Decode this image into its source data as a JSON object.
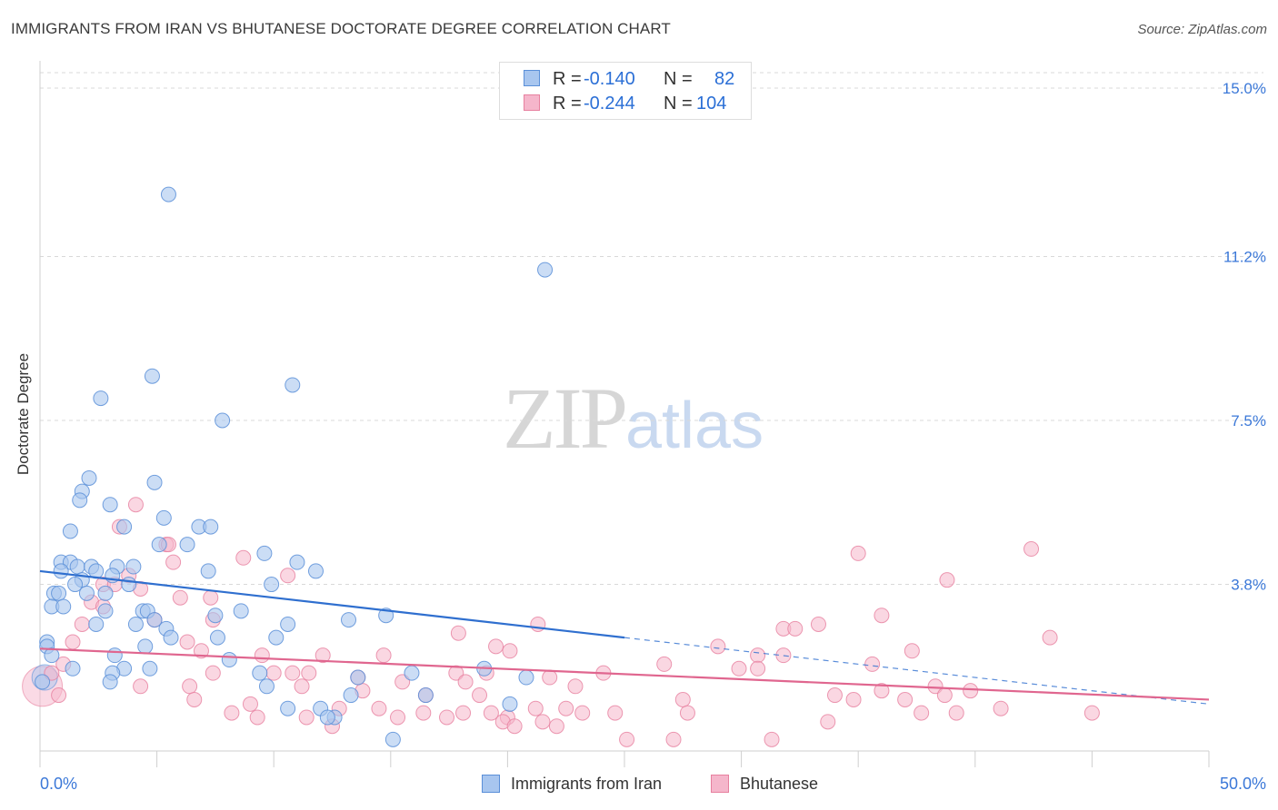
{
  "header": {
    "title": "IMMIGRANTS FROM IRAN VS BHUTANESE DOCTORATE DEGREE CORRELATION CHART",
    "source": "Source: ZipAtlas.com"
  },
  "watermark": {
    "part1": "ZIP",
    "part2": "atlas"
  },
  "legend": {
    "rows": [
      {
        "r_label": "R =",
        "r_value": "-0.140",
        "n_label": "N =",
        "n_value": "82"
      },
      {
        "r_label": "R =",
        "r_value": "-0.244",
        "n_label": "N =",
        "n_value": "104"
      }
    ]
  },
  "bottom_legend": {
    "series1": "Immigrants from Iran",
    "series2": "Bhutanese"
  },
  "chart_data": {
    "type": "scatter",
    "title": "IMMIGRANTS FROM IRAN VS BHUTANESE DOCTORATE DEGREE CORRELATION CHART",
    "xlabel": "",
    "ylabel": "Doctorate Degree",
    "xlim": [
      0,
      50
    ],
    "ylim": [
      0,
      15
    ],
    "x_tick_labels": [
      "0.0%",
      "50.0%"
    ],
    "y_ticks": [
      {
        "value": 15.0,
        "label": "15.0%"
      },
      {
        "value": 11.2,
        "label": "11.2%"
      },
      {
        "value": 7.5,
        "label": "7.5%"
      },
      {
        "value": 3.8,
        "label": "3.8%"
      }
    ],
    "colors": {
      "series1_fill": "#a8c6ef",
      "series1_stroke": "#5a8fd8",
      "series1_line": "#2f6fcf",
      "series2_fill": "#f5b6cb",
      "series2_stroke": "#e7809f",
      "series2_line": "#e0668f",
      "grid": "#d9d9d9",
      "tick_label": "#3b78d8"
    },
    "series": [
      {
        "name": "Immigrants from Iran",
        "R": -0.14,
        "N": 82,
        "trend": {
          "x0": 0,
          "y0": 4.1,
          "x1": 25,
          "y1": 2.6,
          "dash_to_x": 50,
          "dash_to_y": 1.1
        },
        "points": [
          [
            5.5,
            12.6
          ],
          [
            21.6,
            10.9
          ],
          [
            4.8,
            8.5
          ],
          [
            10.8,
            8.3
          ],
          [
            2.6,
            8.0
          ],
          [
            7.8,
            7.5
          ],
          [
            2.1,
            6.2
          ],
          [
            4.9,
            6.1
          ],
          [
            1.8,
            5.9
          ],
          [
            1.7,
            5.7
          ],
          [
            3.0,
            5.6
          ],
          [
            5.3,
            5.3
          ],
          [
            1.3,
            5.0
          ],
          [
            3.6,
            5.1
          ],
          [
            6.8,
            5.1
          ],
          [
            7.3,
            5.1
          ],
          [
            5.1,
            4.7
          ],
          [
            6.3,
            4.7
          ],
          [
            9.6,
            4.5
          ],
          [
            0.9,
            4.3
          ],
          [
            1.3,
            4.3
          ],
          [
            1.6,
            4.2
          ],
          [
            2.2,
            4.2
          ],
          [
            3.3,
            4.2
          ],
          [
            4.0,
            4.2
          ],
          [
            0.9,
            4.1
          ],
          [
            2.4,
            4.1
          ],
          [
            7.2,
            4.1
          ],
          [
            11.0,
            4.3
          ],
          [
            11.8,
            4.1
          ],
          [
            3.1,
            4.0
          ],
          [
            1.8,
            3.9
          ],
          [
            1.5,
            3.8
          ],
          [
            3.8,
            3.8
          ],
          [
            9.9,
            3.8
          ],
          [
            0.6,
            3.6
          ],
          [
            0.8,
            3.6
          ],
          [
            2.0,
            3.6
          ],
          [
            2.8,
            3.6
          ],
          [
            0.5,
            3.3
          ],
          [
            1.0,
            3.3
          ],
          [
            2.8,
            3.2
          ],
          [
            4.4,
            3.2
          ],
          [
            4.6,
            3.2
          ],
          [
            7.5,
            3.1
          ],
          [
            8.6,
            3.2
          ],
          [
            4.9,
            3.0
          ],
          [
            13.2,
            3.0
          ],
          [
            14.8,
            3.1
          ],
          [
            2.4,
            2.9
          ],
          [
            4.1,
            2.9
          ],
          [
            5.4,
            2.8
          ],
          [
            10.6,
            2.9
          ],
          [
            5.6,
            2.6
          ],
          [
            7.6,
            2.6
          ],
          [
            10.1,
            2.6
          ],
          [
            0.3,
            2.5
          ],
          [
            0.3,
            2.4
          ],
          [
            4.5,
            2.4
          ],
          [
            3.2,
            2.2
          ],
          [
            0.5,
            2.2
          ],
          [
            8.1,
            2.1
          ],
          [
            1.4,
            1.9
          ],
          [
            3.6,
            1.9
          ],
          [
            4.7,
            1.9
          ],
          [
            9.4,
            1.8
          ],
          [
            3.1,
            1.8
          ],
          [
            15.9,
            1.8
          ],
          [
            19.0,
            1.9
          ],
          [
            13.6,
            1.7
          ],
          [
            16.5,
            1.3
          ],
          [
            20.8,
            1.7
          ],
          [
            3.0,
            1.6
          ],
          [
            0.1,
            1.6
          ],
          [
            13.3,
            1.3
          ],
          [
            10.6,
            1.0
          ],
          [
            12.0,
            1.0
          ],
          [
            12.6,
            0.8
          ],
          [
            20.1,
            1.1
          ],
          [
            12.3,
            0.8
          ],
          [
            15.1,
            0.3
          ],
          [
            9.7,
            1.5
          ]
        ]
      },
      {
        "name": "Bhutanese",
        "R": -0.244,
        "N": 104,
        "trend": {
          "x0": 0,
          "y0": 2.35,
          "x1": 50,
          "y1": 1.2
        },
        "points": [
          [
            4.1,
            5.6
          ],
          [
            3.4,
            5.1
          ],
          [
            5.4,
            4.7
          ],
          [
            5.5,
            4.7
          ],
          [
            8.7,
            4.4
          ],
          [
            35.0,
            4.5
          ],
          [
            42.4,
            4.6
          ],
          [
            5.7,
            4.3
          ],
          [
            3.8,
            4.0
          ],
          [
            10.6,
            4.0
          ],
          [
            38.8,
            3.9
          ],
          [
            2.7,
            3.8
          ],
          [
            3.2,
            3.8
          ],
          [
            4.3,
            3.7
          ],
          [
            6.0,
            3.5
          ],
          [
            7.3,
            3.5
          ],
          [
            2.2,
            3.4
          ],
          [
            2.7,
            3.3
          ],
          [
            36.0,
            3.1
          ],
          [
            1.8,
            2.9
          ],
          [
            4.9,
            3.0
          ],
          [
            7.4,
            3.0
          ],
          [
            21.3,
            2.9
          ],
          [
            31.8,
            2.8
          ],
          [
            32.3,
            2.8
          ],
          [
            33.3,
            2.9
          ],
          [
            17.9,
            2.7
          ],
          [
            43.2,
            2.6
          ],
          [
            1.4,
            2.5
          ],
          [
            6.3,
            2.5
          ],
          [
            29.0,
            2.4
          ],
          [
            19.5,
            2.4
          ],
          [
            20.1,
            2.3
          ],
          [
            30.7,
            2.2
          ],
          [
            31.8,
            2.2
          ],
          [
            37.3,
            2.3
          ],
          [
            6.9,
            2.3
          ],
          [
            9.5,
            2.2
          ],
          [
            12.1,
            2.2
          ],
          [
            14.7,
            2.2
          ],
          [
            26.7,
            2.0
          ],
          [
            35.6,
            2.0
          ],
          [
            1.0,
            2.0
          ],
          [
            0.5,
            1.8
          ],
          [
            7.4,
            1.8
          ],
          [
            10.0,
            1.8
          ],
          [
            10.8,
            1.8
          ],
          [
            11.5,
            1.8
          ],
          [
            13.6,
            1.7
          ],
          [
            17.8,
            1.8
          ],
          [
            19.1,
            1.8
          ],
          [
            21.8,
            1.7
          ],
          [
            24.1,
            1.8
          ],
          [
            29.9,
            1.9
          ],
          [
            30.7,
            1.9
          ],
          [
            4.3,
            1.5
          ],
          [
            6.4,
            1.5
          ],
          [
            11.2,
            1.5
          ],
          [
            15.5,
            1.6
          ],
          [
            18.2,
            1.6
          ],
          [
            22.9,
            1.5
          ],
          [
            38.3,
            1.5
          ],
          [
            39.8,
            1.4
          ],
          [
            36.0,
            1.4
          ],
          [
            38.7,
            1.3
          ],
          [
            37.0,
            1.2
          ],
          [
            34.0,
            1.3
          ],
          [
            34.8,
            1.2
          ],
          [
            27.5,
            1.2
          ],
          [
            18.8,
            1.3
          ],
          [
            16.5,
            1.3
          ],
          [
            13.8,
            1.4
          ],
          [
            0.8,
            1.3
          ],
          [
            6.6,
            1.2
          ],
          [
            9.0,
            1.1
          ],
          [
            12.8,
            1.0
          ],
          [
            14.5,
            1.0
          ],
          [
            16.4,
            0.9
          ],
          [
            18.1,
            0.9
          ],
          [
            19.3,
            0.9
          ],
          [
            20.0,
            0.8
          ],
          [
            21.2,
            1.0
          ],
          [
            22.5,
            1.0
          ],
          [
            23.2,
            0.9
          ],
          [
            24.6,
            0.9
          ],
          [
            27.7,
            0.9
          ],
          [
            8.2,
            0.9
          ],
          [
            9.3,
            0.8
          ],
          [
            11.4,
            0.8
          ],
          [
            15.3,
            0.8
          ],
          [
            17.4,
            0.8
          ],
          [
            19.8,
            0.7
          ],
          [
            20.3,
            0.6
          ],
          [
            21.5,
            0.7
          ],
          [
            22.1,
            0.6
          ],
          [
            25.1,
            0.3
          ],
          [
            27.1,
            0.3
          ],
          [
            31.3,
            0.3
          ],
          [
            33.7,
            0.7
          ],
          [
            37.7,
            0.9
          ],
          [
            39.2,
            0.9
          ],
          [
            41.1,
            1.0
          ],
          [
            45.0,
            0.9
          ],
          [
            12.5,
            0.6
          ]
        ]
      }
    ]
  }
}
